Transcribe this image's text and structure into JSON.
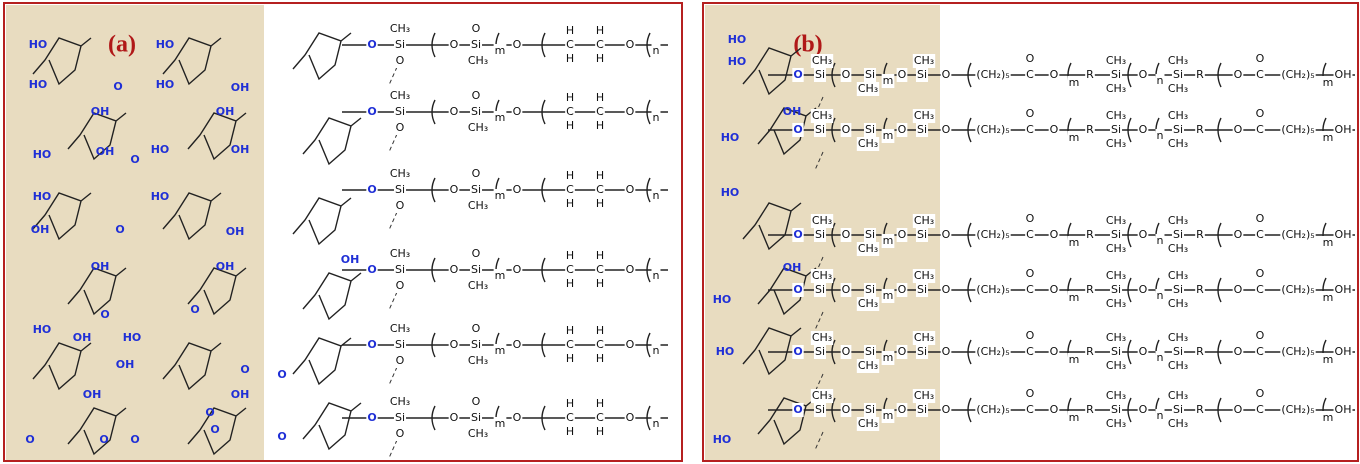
{
  "panels": [
    {
      "label": "(a)",
      "sugar_labels": [
        "HO",
        "HO",
        "HO",
        "OH",
        "O",
        "HO",
        "OH",
        "OH",
        "OH",
        "O",
        "HO",
        "HO",
        "OH",
        "O",
        "OH",
        "OH",
        "HO",
        "HO",
        "OH",
        "OH",
        "HO",
        "OH",
        "HO",
        "O",
        "OH",
        "O",
        "O",
        "OH",
        "O",
        "OH",
        "O",
        "O",
        "O",
        "O",
        "OH",
        "O",
        "O"
      ],
      "chain_rows": [
        [
          "O",
          "Si",
          "CH₃",
          "O",
          "O",
          "Si",
          "O",
          "CH₃",
          "m",
          "O",
          "C",
          "H",
          "H",
          "C",
          "H",
          "H",
          "O",
          "n"
        ],
        [
          "O",
          "Si",
          "CH₃",
          "O",
          "O",
          "Si",
          "O",
          "CH₃",
          "m",
          "O",
          "C",
          "H",
          "H",
          "C",
          "H",
          "H",
          "O",
          "n"
        ],
        [
          "O",
          "Si",
          "CH₃",
          "O",
          "O",
          "Si",
          "O",
          "CH₃",
          "m",
          "O",
          "C",
          "H",
          "H",
          "C",
          "H",
          "H",
          "O",
          "n"
        ],
        [
          "O",
          "Si",
          "CH₃",
          "O",
          "O",
          "Si",
          "O",
          "CH₃",
          "m",
          "O",
          "C",
          "H",
          "H",
          "C",
          "H",
          "H",
          "O",
          "n"
        ],
        [
          "O",
          "Si",
          "CH₃",
          "O",
          "O",
          "Si",
          "O",
          "CH₃",
          "m",
          "O",
          "C",
          "H",
          "H",
          "C",
          "H",
          "H",
          "O",
          "n"
        ],
        [
          "O",
          "Si",
          "CH₃",
          "O",
          "O",
          "Si",
          "O",
          "CH₃",
          "m",
          "O",
          "C",
          "H",
          "H",
          "C",
          "H",
          "H",
          "O",
          "n"
        ]
      ]
    },
    {
      "label": "(b)",
      "sugar_labels": [
        "HO",
        "HO",
        "OH",
        "HO",
        "HO",
        "OH",
        "HO",
        "HO",
        "HO"
      ],
      "chain_rows": [
        [
          "O",
          "Si",
          "CH₃",
          "O",
          "Si",
          "CH₃",
          "m",
          "O",
          "Si",
          "CH₃",
          "O",
          "(CH₂)₅",
          "C",
          "O",
          "O",
          "m",
          "R",
          "Si",
          "CH₃",
          "CH₃",
          "O",
          "n",
          "Si",
          "CH₃",
          "CH₃",
          "R",
          "O",
          "C",
          "O",
          "(CH₂)₅",
          "m",
          "OH"
        ],
        [
          "O",
          "Si",
          "CH₃",
          "O",
          "Si",
          "CH₃",
          "m",
          "O",
          "Si",
          "CH₃",
          "O",
          "(CH₂)₅",
          "C",
          "O",
          "O",
          "m",
          "R",
          "Si",
          "CH₃",
          "CH₃",
          "O",
          "n",
          "Si",
          "CH₃",
          "CH₃",
          "R",
          "O",
          "C",
          "O",
          "(CH₂)₅",
          "m",
          "OH"
        ],
        [
          "O",
          "Si",
          "CH₃",
          "O",
          "Si",
          "CH₃",
          "m",
          "O",
          "Si",
          "CH₃",
          "O",
          "(CH₂)₅",
          "C",
          "O",
          "O",
          "m",
          "R",
          "Si",
          "CH₃",
          "CH₃",
          "O",
          "n",
          "Si",
          "CH₃",
          "CH₃",
          "R",
          "O",
          "C",
          "O",
          "(CH₂)₅",
          "m",
          "OH"
        ],
        [
          "O",
          "Si",
          "CH₃",
          "O",
          "Si",
          "CH₃",
          "m",
          "O",
          "Si",
          "CH₃",
          "O",
          "(CH₂)₅",
          "C",
          "O",
          "O",
          "m",
          "R",
          "Si",
          "CH₃",
          "CH₃",
          "O",
          "n",
          "Si",
          "CH₃",
          "CH₃",
          "R",
          "O",
          "C",
          "O",
          "(CH₂)₅",
          "m",
          "OH"
        ],
        [
          "O",
          "Si",
          "CH₃",
          "O",
          "Si",
          "CH₃",
          "m",
          "O",
          "Si",
          "CH₃",
          "O",
          "(CH₂)₅",
          "C",
          "O",
          "O",
          "m",
          "R",
          "Si",
          "CH₃",
          "CH₃",
          "O",
          "n",
          "Si",
          "CH₃",
          "CH₃",
          "R",
          "O",
          "C",
          "O",
          "(CH₂)₅",
          "m",
          "OH"
        ],
        [
          "O",
          "Si",
          "CH₃",
          "O",
          "Si",
          "CH₃",
          "m",
          "O",
          "Si",
          "CH₃",
          "O",
          "(CH₂)₅",
          "C",
          "O",
          "O",
          "m",
          "R",
          "Si",
          "CH₃",
          "CH₃",
          "O",
          "n",
          "Si",
          "CH₃",
          "CH₃",
          "R",
          "O",
          "C",
          "O",
          "(CH₂)₅",
          "m",
          "OH"
        ]
      ]
    }
  ]
}
